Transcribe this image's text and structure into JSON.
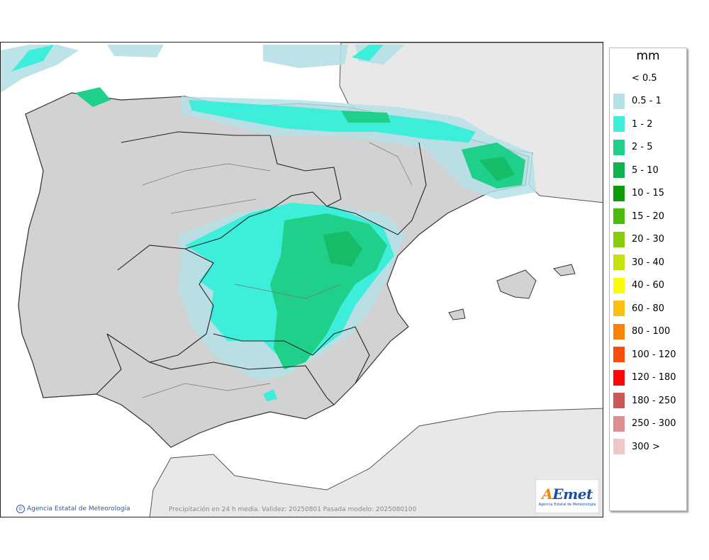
{
  "map": {
    "units_title": "mm",
    "footer_credit": "Agencia Estatal de Meteorología",
    "footer_info": "Precipitación en 24 h media. Validez: 20250801 Pasada modelo: 2025080100",
    "logo": {
      "main_a": "A",
      "main_e": "E",
      "main_rest": "met",
      "sub": "Agencia Estatal de Meteorología"
    },
    "legend": [
      {
        "label": "< 0.5",
        "color": "#ffffff"
      },
      {
        "label": "0.5 - 1",
        "color": "#b5e1e6"
      },
      {
        "label": "1 - 2",
        "color": "#3deedb"
      },
      {
        "label": "2 - 5",
        "color": "#1fcf8a"
      },
      {
        "label": "5 - 10",
        "color": "#0fb24e"
      },
      {
        "label": "10 - 15",
        "color": "#0c9c0a"
      },
      {
        "label": "15 - 20",
        "color": "#4cba0a"
      },
      {
        "label": "20 - 30",
        "color": "#88cd0a"
      },
      {
        "label": "30 - 40",
        "color": "#c6e20c"
      },
      {
        "label": "40 - 60",
        "color": "#fcfc04"
      },
      {
        "label": "60 - 80",
        "color": "#fcc012"
      },
      {
        "label": "80 - 100",
        "color": "#fc8308"
      },
      {
        "label": "100 - 120",
        "color": "#fc4c0c"
      },
      {
        "label": "120 - 180",
        "color": "#fc0606"
      },
      {
        "label": "180 - 250",
        "color": "#cc5858"
      },
      {
        "label": "250 - 300",
        "color": "#de8e8e"
      },
      {
        "label": "300 >",
        "color": "#efc7c7"
      }
    ]
  }
}
